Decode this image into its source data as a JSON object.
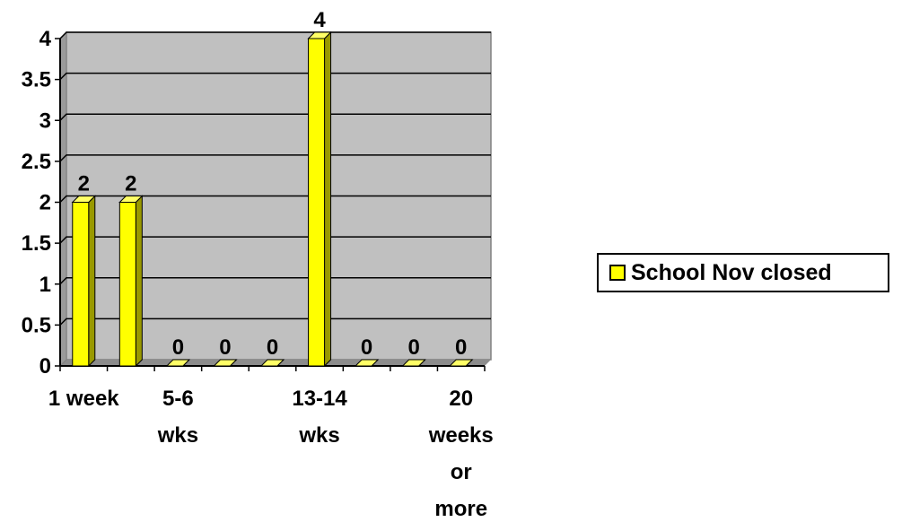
{
  "chart_data": {
    "type": "bar",
    "categories": [
      "1 week",
      "",
      "5-6 wks",
      "",
      "",
      "13-14 wks",
      "",
      "",
      "20 weeks or more"
    ],
    "category_labels": [
      {
        "index": 0,
        "lines": [
          "1 week"
        ]
      },
      {
        "index": 2,
        "lines": [
          "5-6",
          "wks"
        ]
      },
      {
        "index": 5,
        "lines": [
          "13-14",
          "wks"
        ]
      },
      {
        "index": 8,
        "lines": [
          "20",
          "weeks",
          "or",
          "more"
        ]
      }
    ],
    "series": [
      {
        "name": "School Nov closed",
        "values": [
          2,
          2,
          0,
          0,
          0,
          4,
          0,
          0,
          0
        ]
      }
    ],
    "data_labels": [
      "2",
      "2",
      "0",
      "0",
      "0",
      "4",
      "0",
      "0",
      "0"
    ],
    "yticks": [
      "0",
      "0.5",
      "1",
      "1.5",
      "2",
      "2.5",
      "3",
      "3.5",
      "4"
    ],
    "ylim": [
      0,
      4
    ],
    "grid": true,
    "legend_position": "right",
    "title": "",
    "xlabel": "",
    "ylabel": "",
    "colors": {
      "bar": "#ffff00",
      "bar_side": "#999900",
      "plot_bg": "#c0c0c0",
      "plot_wall": "#808080"
    }
  }
}
